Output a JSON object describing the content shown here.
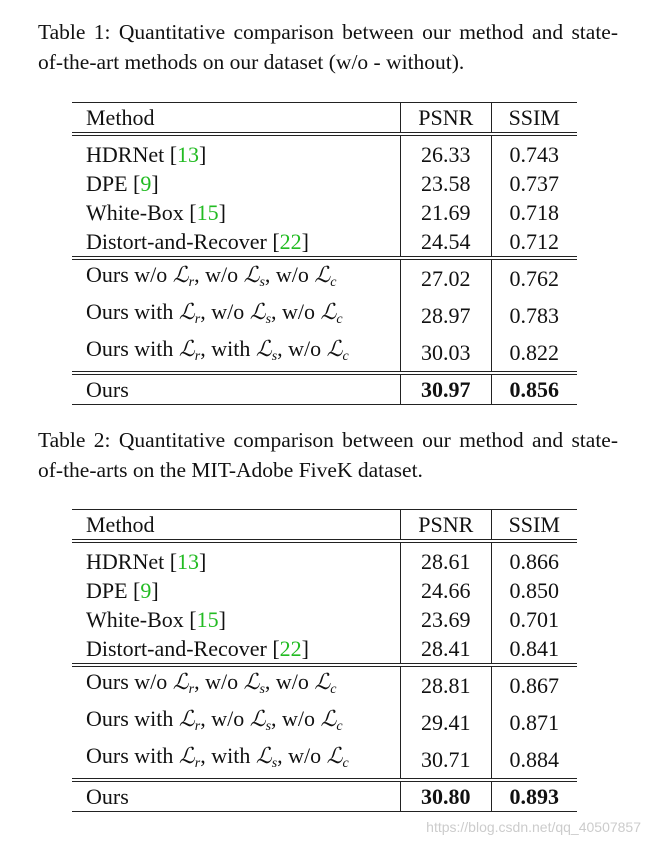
{
  "tables": [
    {
      "caption": "Table 1: Quantitative comparison between our method and state-of-the-art methods on our dataset (w/o - without).",
      "header": [
        "Method",
        "PSNR",
        "SSIM"
      ],
      "groups": [
        [
          [
            [
              "HDRNet [",
              {
                "ref": "13"
              },
              "]"
            ],
            "26.33",
            "0.743"
          ],
          [
            [
              "DPE [",
              {
                "ref": "9"
              },
              "]"
            ],
            "23.58",
            "0.737"
          ],
          [
            [
              "White-Box [",
              {
                "ref": "15"
              },
              "]"
            ],
            "21.69",
            "0.718"
          ],
          [
            [
              "Distort-and-Recover [",
              {
                "ref": "22"
              },
              "]"
            ],
            "24.54",
            "0.712"
          ]
        ],
        [
          [
            [
              "Ours w/o ",
              {
                "symbol": "ℒ",
                "sub": "r"
              },
              ", w/o ",
              {
                "symbol": "ℒ",
                "sub": "s"
              },
              ", w/o ",
              {
                "symbol": "ℒ",
                "sub": "c"
              }
            ],
            "27.02",
            "0.762"
          ],
          [
            [
              "Ours with ",
              {
                "symbol": "ℒ",
                "sub": "r"
              },
              ", w/o ",
              {
                "symbol": "ℒ",
                "sub": "s"
              },
              ", w/o ",
              {
                "symbol": "ℒ",
                "sub": "c"
              }
            ],
            "28.97",
            "0.783"
          ],
          [
            [
              "Ours with ",
              {
                "symbol": "ℒ",
                "sub": "r"
              },
              ", with ",
              {
                "symbol": "ℒ",
                "sub": "s"
              },
              ", w/o ",
              {
                "symbol": "ℒ",
                "sub": "c"
              }
            ],
            "30.03",
            "0.822"
          ]
        ],
        [
          [
            [
              "Ours"
            ],
            "30.97",
            "0.856"
          ]
        ]
      ]
    },
    {
      "caption": "Table 2: Quantitative comparison between our method and state-of-the-arts on the MIT-Adobe FiveK dataset.",
      "header": [
        "Method",
        "PSNR",
        "SSIM"
      ],
      "groups": [
        [
          [
            [
              "HDRNet [",
              {
                "ref": "13"
              },
              "]"
            ],
            "28.61",
            "0.866"
          ],
          [
            [
              "DPE [",
              {
                "ref": "9"
              },
              "]"
            ],
            "24.66",
            "0.850"
          ],
          [
            [
              "White-Box [",
              {
                "ref": "15"
              },
              "]"
            ],
            "23.69",
            "0.701"
          ],
          [
            [
              "Distort-and-Recover [",
              {
                "ref": "22"
              },
              "]"
            ],
            "28.41",
            "0.841"
          ]
        ],
        [
          [
            [
              "Ours w/o ",
              {
                "symbol": "ℒ",
                "sub": "r"
              },
              ", w/o ",
              {
                "symbol": "ℒ",
                "sub": "s"
              },
              ", w/o ",
              {
                "symbol": "ℒ",
                "sub": "c"
              }
            ],
            "28.81",
            "0.867"
          ],
          [
            [
              "Ours with ",
              {
                "symbol": "ℒ",
                "sub": "r"
              },
              ", w/o ",
              {
                "symbol": "ℒ",
                "sub": "s"
              },
              ", w/o ",
              {
                "symbol": "ℒ",
                "sub": "c"
              }
            ],
            "29.41",
            "0.871"
          ],
          [
            [
              "Ours with ",
              {
                "symbol": "ℒ",
                "sub": "r"
              },
              ", with ",
              {
                "symbol": "ℒ",
                "sub": "s"
              },
              ", w/o ",
              {
                "symbol": "ℒ",
                "sub": "c"
              }
            ],
            "30.71",
            "0.884"
          ]
        ],
        [
          [
            [
              "Ours"
            ],
            "30.80",
            "0.893"
          ]
        ]
      ]
    }
  ],
  "watermark": "https://blog.csdn.net/qq_40507857"
}
